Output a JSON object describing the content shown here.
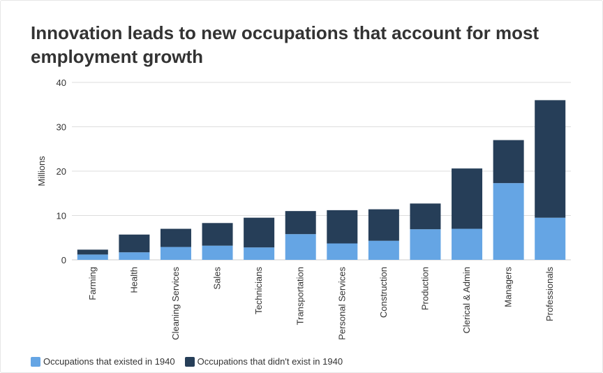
{
  "colors": {
    "existed": "#65a5e4",
    "new": "#263e58",
    "grid": "#dddddd",
    "text": "#333333"
  },
  "chart_data": {
    "type": "bar",
    "stacked": true,
    "title": "Innovation leads to new occupations that account for most employment growth",
    "xlabel": "",
    "ylabel": "Millions",
    "ylim": [
      0,
      40
    ],
    "yticks": [
      0,
      10,
      20,
      30,
      40
    ],
    "grid": true,
    "legend_position": "bottom-left",
    "categories": [
      "Farming",
      "Health",
      "Cleaning Services",
      "Sales",
      "Technicians",
      "Transportation",
      "Personal Services",
      "Construction",
      "Production",
      "Clerical & Admin",
      "Managers",
      "Professionals"
    ],
    "series": [
      {
        "name": "Occupations that existed in 1940",
        "color": "#65a5e4",
        "values": [
          1.2,
          1.7,
          2.9,
          3.2,
          2.8,
          5.8,
          3.7,
          4.3,
          6.9,
          7.0,
          17.3,
          9.5
        ]
      },
      {
        "name": "Occupations that didn't exist in 1940",
        "color": "#263e58",
        "values": [
          1.1,
          4.0,
          4.1,
          5.1,
          6.7,
          5.2,
          7.5,
          7.1,
          5.8,
          13.6,
          9.7,
          26.5
        ]
      }
    ]
  }
}
